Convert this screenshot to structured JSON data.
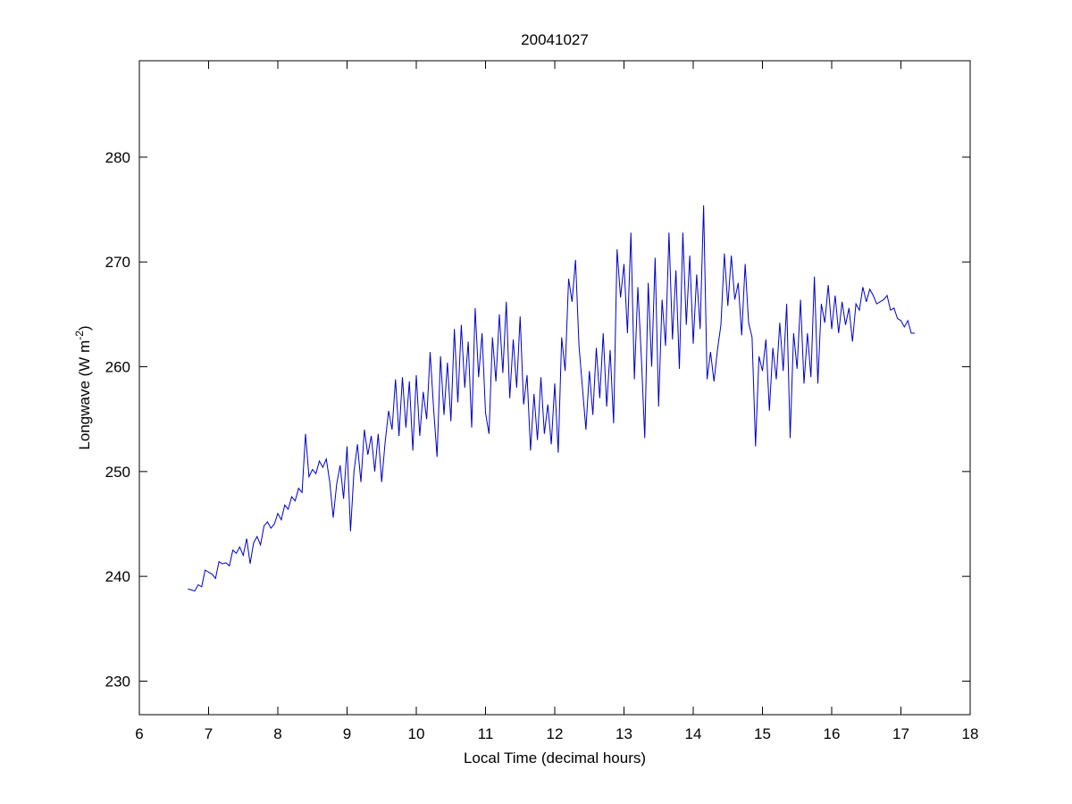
{
  "chart_data": {
    "type": "line",
    "title": "20041027",
    "xlabel": "Local Time (decimal hours)",
    "ylabel": {
      "text": "Longwave (W m",
      "superscript": "-2",
      "suffix": ")"
    },
    "xlim": [
      6,
      18
    ],
    "xticks": [
      6,
      7,
      8,
      9,
      10,
      11,
      12,
      13,
      14,
      15,
      16,
      17,
      18
    ],
    "ylim": [
      226.8,
      289.2
    ],
    "yticks": [
      230,
      240,
      250,
      260,
      270,
      280
    ],
    "grid": false,
    "x": [
      6.7,
      6.75,
      6.8,
      6.85,
      6.9,
      6.95,
      7,
      7.05,
      7.1,
      7.15,
      7.2,
      7.25,
      7.3,
      7.35,
      7.4,
      7.45,
      7.5,
      7.55,
      7.6,
      7.65,
      7.7,
      7.75,
      7.8,
      7.85,
      7.9,
      7.95,
      8,
      8.05,
      8.1,
      8.15,
      8.2,
      8.25,
      8.3,
      8.35,
      8.4,
      8.45,
      8.5,
      8.55,
      8.6,
      8.65,
      8.7,
      8.75,
      8.8,
      8.85,
      8.9,
      8.95,
      9,
      9.05,
      9.1,
      9.15,
      9.2,
      9.25,
      9.3,
      9.35,
      9.4,
      9.45,
      9.5,
      9.55,
      9.6,
      9.65,
      9.7,
      9.75,
      9.8,
      9.85,
      9.9,
      9.95,
      10,
      10.05,
      10.1,
      10.15,
      10.2,
      10.25,
      10.3,
      10.35,
      10.4,
      10.45,
      10.5,
      10.55,
      10.6,
      10.65,
      10.7,
      10.75,
      10.8,
      10.85,
      10.9,
      10.95,
      11,
      11.05,
      11.1,
      11.15,
      11.2,
      11.25,
      11.3,
      11.35,
      11.4,
      11.45,
      11.5,
      11.55,
      11.6,
      11.65,
      11.7,
      11.75,
      11.8,
      11.85,
      11.9,
      11.95,
      12,
      12.05,
      12.1,
      12.15,
      12.2,
      12.25,
      12.3,
      12.35,
      12.4,
      12.45,
      12.5,
      12.55,
      12.6,
      12.65,
      12.7,
      12.75,
      12.8,
      12.85,
      12.9,
      12.95,
      13,
      13.05,
      13.1,
      13.15,
      13.2,
      13.25,
      13.3,
      13.35,
      13.4,
      13.45,
      13.5,
      13.55,
      13.6,
      13.65,
      13.7,
      13.75,
      13.8,
      13.85,
      13.9,
      13.95,
      14,
      14.05,
      14.1,
      14.15,
      14.2,
      14.25,
      14.3,
      14.35,
      14.4,
      14.45,
      14.5,
      14.55,
      14.6,
      14.65,
      14.7,
      14.75,
      14.8,
      14.85,
      14.9,
      14.95,
      15,
      15.05,
      15.1,
      15.15,
      15.2,
      15.25,
      15.3,
      15.35,
      15.4,
      15.45,
      15.5,
      15.55,
      15.6,
      15.65,
      15.7,
      15.75,
      15.8,
      15.85,
      15.9,
      15.95,
      16,
      16.05,
      16.1,
      16.15,
      16.2,
      16.25,
      16.3,
      16.35,
      16.4,
      16.45,
      16.5,
      16.55,
      16.6,
      16.65,
      16.7,
      16.75,
      16.8,
      16.85,
      16.9,
      16.95,
      17,
      17.05,
      17.1,
      17.15,
      17.2
    ],
    "series": [
      {
        "name": "Longwave",
        "color": "#0000cc",
        "values": [
          238.8,
          238.7,
          238.6,
          239.2,
          239.0,
          240.6,
          240.4,
          240.2,
          239.8,
          241.4,
          241.2,
          241.3,
          241.0,
          242.5,
          242.2,
          242.8,
          242.0,
          243.6,
          241.2,
          243.2,
          243.8,
          243.0,
          244.8,
          245.2,
          244.6,
          245.0,
          246.0,
          245.4,
          246.8,
          246.4,
          247.6,
          247.2,
          248.4,
          248.0,
          253.6,
          249.5,
          250.2,
          249.8,
          251.0,
          250.4,
          251.2,
          249.0,
          245.6,
          248.8,
          250.6,
          247.4,
          252.4,
          244.3,
          250.0,
          252.6,
          249.0,
          254.0,
          251.6,
          253.4,
          250.0,
          253.6,
          249.0,
          252.8,
          255.8,
          254.0,
          258.8,
          253.4,
          259.0,
          254.2,
          258.6,
          252.0,
          259.2,
          253.4,
          257.6,
          255.0,
          261.4,
          256.0,
          251.4,
          261.0,
          255.4,
          260.4,
          254.8,
          263.6,
          256.6,
          264.0,
          258.0,
          262.4,
          254.2,
          265.6,
          259.0,
          263.2,
          255.6,
          253.6,
          262.8,
          258.6,
          265.0,
          259.4,
          266.2,
          257.0,
          262.6,
          258.0,
          264.8,
          256.4,
          259.2,
          252.0,
          257.4,
          253.0,
          259.0,
          253.6,
          256.4,
          252.6,
          258.4,
          251.8,
          262.8,
          259.6,
          268.4,
          266.2,
          270.2,
          262.0,
          258.0,
          254.0,
          259.6,
          255.4,
          261.8,
          257.0,
          263.2,
          256.2,
          261.6,
          254.6,
          271.2,
          266.6,
          269.8,
          263.2,
          272.8,
          258.8,
          267.6,
          261.0,
          253.2,
          268.0,
          260.0,
          270.4,
          256.2,
          266.4,
          262.0,
          272.8,
          262.6,
          269.2,
          259.8,
          272.8,
          264.0,
          270.6,
          262.2,
          268.8,
          263.6,
          275.4,
          258.8,
          261.4,
          258.6,
          261.6,
          264.0,
          270.8,
          265.8,
          270.6,
          266.4,
          268.0,
          263.0,
          269.8,
          264.2,
          262.8,
          252.4,
          261.0,
          259.6,
          262.6,
          255.8,
          261.8,
          258.8,
          264.2,
          259.6,
          266.0,
          253.2,
          263.2,
          259.8,
          266.4,
          258.4,
          263.2,
          259.0,
          268.6,
          258.4,
          266.0,
          264.2,
          267.8,
          263.6,
          266.8,
          263.2,
          266.2,
          264.0,
          265.6,
          262.4,
          266.0,
          265.4,
          267.6,
          266.2,
          267.4,
          266.8,
          266.0,
          266.2,
          266.4,
          266.8,
          265.4,
          265.6,
          264.6,
          264.4,
          263.8,
          264.4,
          263.2,
          263.2
        ]
      }
    ]
  }
}
